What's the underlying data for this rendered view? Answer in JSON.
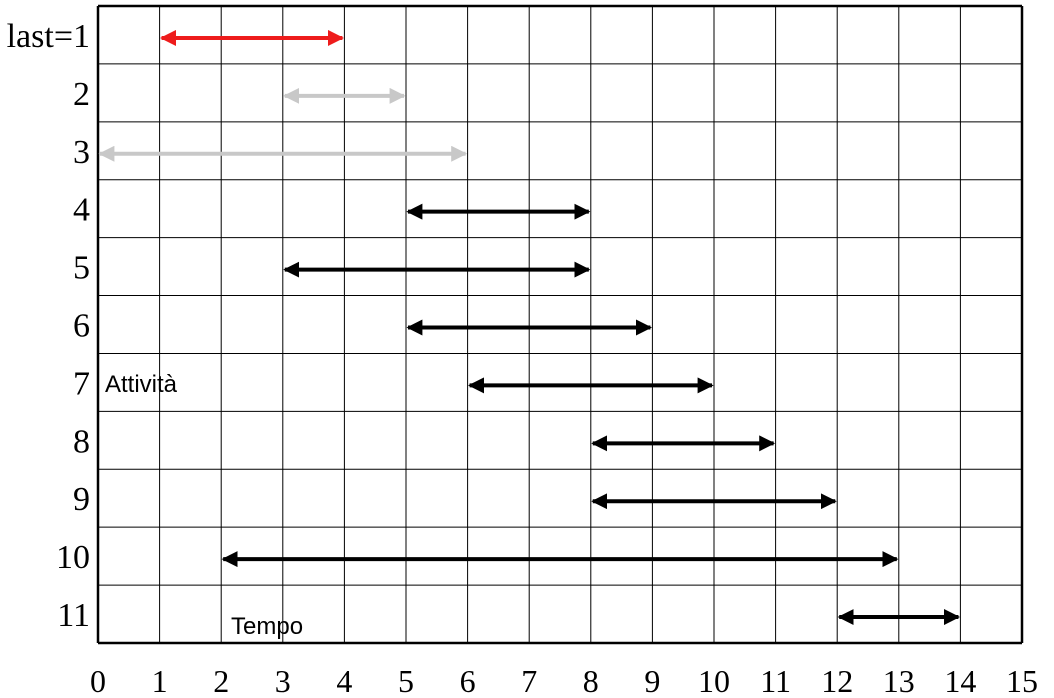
{
  "chart_data": {
    "type": "gantt",
    "title": "",
    "x_ticks": [
      "0",
      "1",
      "2",
      "3",
      "4",
      "5",
      "6",
      "7",
      "8",
      "9",
      "10",
      "11",
      "12",
      "13",
      "14",
      "15"
    ],
    "xlim": [
      0,
      15
    ],
    "row_labels": [
      "last=1",
      "2",
      "3",
      "4",
      "5",
      "6",
      "7",
      "8",
      "9",
      "10",
      "11"
    ],
    "annotations": {
      "y_axis": "Attività",
      "x_axis": "Tempo"
    },
    "grid": true,
    "colors": {
      "highlight": "#ee1c1c",
      "faded": "#c8c8c8",
      "normal": "#000000",
      "grid": "#000000"
    },
    "intervals": [
      {
        "row": "last=1",
        "start": 1,
        "end": 4,
        "state": "highlight"
      },
      {
        "row": "2",
        "start": 3,
        "end": 5,
        "state": "faded"
      },
      {
        "row": "3",
        "start": 0,
        "end": 6,
        "state": "faded"
      },
      {
        "row": "4",
        "start": 5,
        "end": 8,
        "state": "normal"
      },
      {
        "row": "5",
        "start": 3,
        "end": 8,
        "state": "normal"
      },
      {
        "row": "6",
        "start": 5,
        "end": 9,
        "state": "normal"
      },
      {
        "row": "7",
        "start": 6,
        "end": 10,
        "state": "normal"
      },
      {
        "row": "8",
        "start": 8,
        "end": 11,
        "state": "normal"
      },
      {
        "row": "9",
        "start": 8,
        "end": 12,
        "state": "normal"
      },
      {
        "row": "10",
        "start": 2,
        "end": 13,
        "state": "normal"
      },
      {
        "row": "11",
        "start": 12,
        "end": 14,
        "state": "normal"
      }
    ]
  }
}
